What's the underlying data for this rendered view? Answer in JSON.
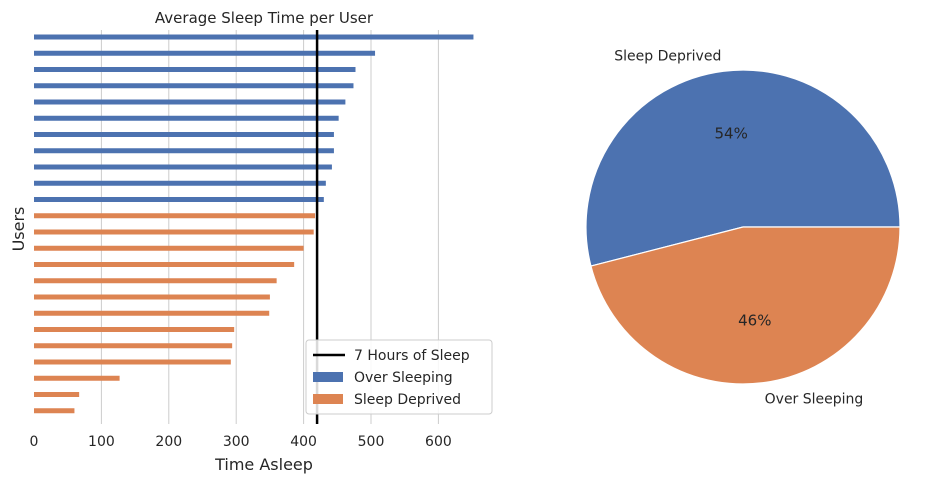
{
  "chart_data": [
    {
      "type": "bar",
      "orientation": "horizontal",
      "title": "Average Sleep Time per User",
      "xlabel": "Time Asleep",
      "ylabel": "Users",
      "xlim": [
        0,
        660
      ],
      "xticks": [
        0,
        100,
        200,
        300,
        400,
        500,
        600
      ],
      "grid": "vertical",
      "legend_position": "bottom-right",
      "reference_line": {
        "label": "7 Hours of Sleep",
        "value": 420,
        "color": "#000000"
      },
      "series": [
        {
          "name": "Over Sleeping",
          "color": "#4c72b0",
          "values": [
            652,
            506,
            477,
            474,
            462,
            452,
            445,
            445,
            442,
            433,
            430
          ]
        },
        {
          "name": "Sleep Deprived",
          "color": "#dd8452",
          "values": [
            417,
            415,
            400,
            386,
            360,
            350,
            349,
            297,
            294,
            292,
            127,
            67,
            60
          ]
        }
      ]
    },
    {
      "type": "pie",
      "slices": [
        {
          "label": "Sleep Deprived",
          "value": 54,
          "pct_label": "54%",
          "color": "#4c72b0"
        },
        {
          "label": "Over Sleeping",
          "value": 46,
          "pct_label": "46%",
          "color": "#dd8452"
        }
      ]
    }
  ]
}
